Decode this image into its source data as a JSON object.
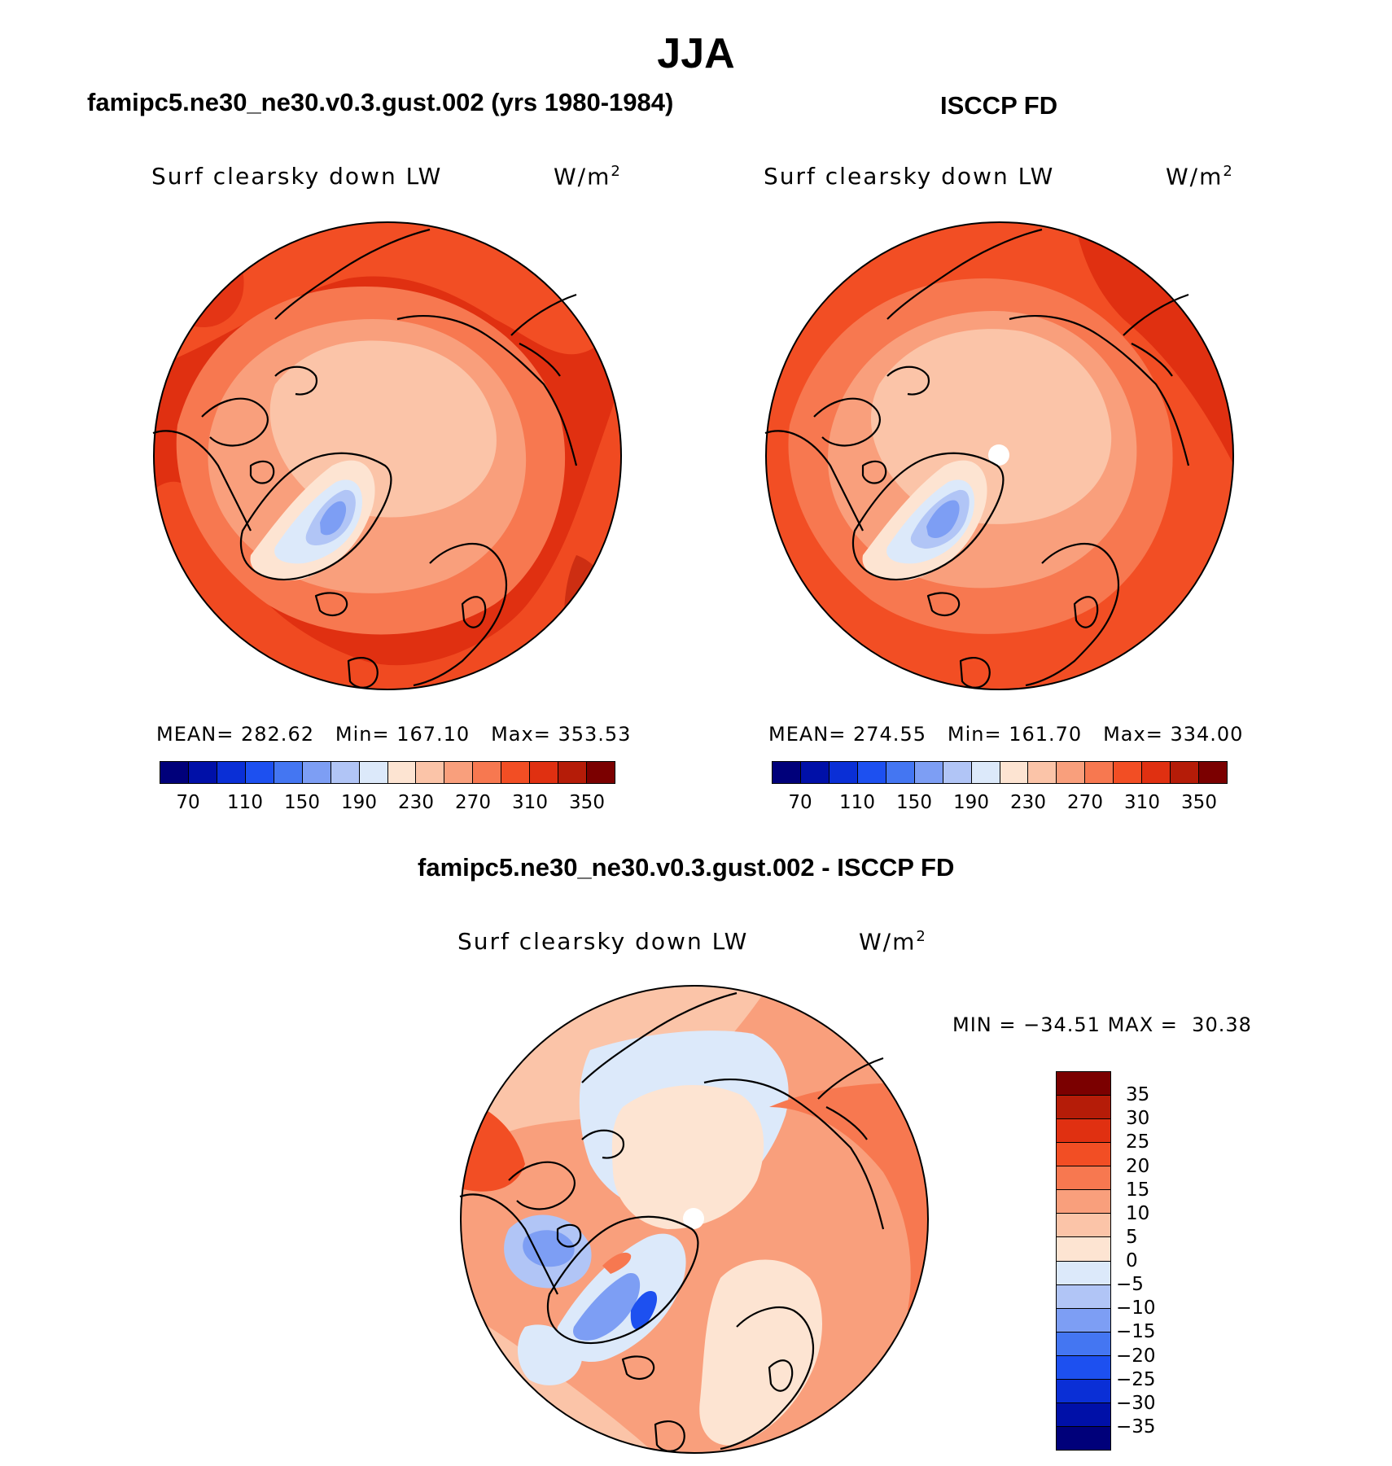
{
  "figure": {
    "title": "JJA",
    "units_sup": "2"
  },
  "panels": [
    {
      "id": "model",
      "subtitle": "famipc5.ne30_ne30.v0.3.gust.002 (yrs 1980-1984)",
      "variable": "Surf clearsky down LW",
      "units": "W/m",
      "stats": {
        "mean_label": "MEAN=",
        "mean": "282.62",
        "min_label": "Min=",
        "min": "167.10",
        "max_label": "Max=",
        "max": "353.53"
      }
    },
    {
      "id": "obs",
      "subtitle": "ISCCP FD",
      "variable": "Surf clearsky down LW",
      "units": "W/m",
      "stats": {
        "mean_label": "MEAN=",
        "mean": "274.55",
        "min_label": "Min=",
        "min": "161.70",
        "max_label": "Max=",
        "max": "334.00"
      }
    },
    {
      "id": "diff",
      "subtitle": "famipc5.ne30_ne30.v0.3.gust.002 - ISCCP FD",
      "variable": "Surf clearsky down LW",
      "units": "W/m",
      "stats": {
        "min_label": "MIN =",
        "min": "−34.51",
        "max_label": "MAX =",
        "max": "30.38"
      }
    }
  ],
  "colorbars": {
    "abs": {
      "colors": [
        "#00007a",
        "#0010a8",
        "#0a2fd6",
        "#1d50f0",
        "#4476f2",
        "#7d9ef4",
        "#b1c5f6",
        "#dce9fa",
        "#fde4d2",
        "#fbc4a8",
        "#f99f7c",
        "#f77850",
        "#f24e24",
        "#e03011",
        "#b51c08",
        "#7b0000"
      ],
      "tick_labels": [
        "70",
        "110",
        "150",
        "190",
        "230",
        "270",
        "310",
        "350"
      ]
    },
    "diff": {
      "colors": [
        "#7b0000",
        "#b51c08",
        "#e03011",
        "#f24e24",
        "#f77850",
        "#f99f7c",
        "#fbc4a8",
        "#fde4d2",
        "#dce9fa",
        "#b1c5f6",
        "#7d9ef4",
        "#4476f2",
        "#1d50f0",
        "#0a2fd6",
        "#0010a8",
        "#00007a"
      ],
      "tick_labels": [
        "35",
        "30",
        "25",
        "20",
        "15",
        "10",
        "5",
        "0",
        "−5",
        "−10",
        "−15",
        "−20",
        "−25",
        "−30",
        "−35"
      ]
    }
  },
  "map_data": {
    "projection": "north-polar-stereographic",
    "region": "Northern high latitudes (Arctic)",
    "model_field": {
      "pole_region": 230,
      "greenland_min": 170,
      "mid_latitude_ring": 310,
      "outer_edge": 340
    },
    "obs_field": {
      "pole_region": 225,
      "greenland_min": 165,
      "mid_latitude_ring": 300,
      "outer_edge": 330,
      "missing_pole_point": true
    },
    "diff_field": {
      "pole_region": 2,
      "greenland": -20,
      "eurasia": 12,
      "north_america": 8
    }
  }
}
